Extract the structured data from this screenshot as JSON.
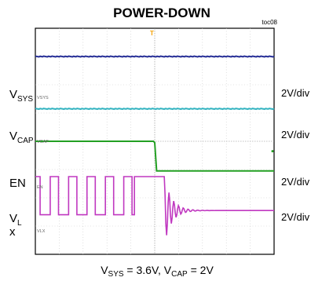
{
  "chart_data": {
    "type": "line",
    "title": "POWER-DOWN",
    "figure_id": "toc08",
    "caption_parts": [
      "V",
      "SYS",
      " = 3.6V, V",
      "CAP",
      " = 2V"
    ],
    "grid": true,
    "grid_divisions": {
      "x": 10,
      "y": 8
    },
    "trigger_marker": "T",
    "labels": [
      {
        "main": "V",
        "sub": "SYS",
        "small": "VSYS",
        "scale": "2V/div"
      },
      {
        "main": "V",
        "sub": "CAP",
        "small": "VCAP",
        "scale": "2V/div"
      },
      {
        "main": "EN",
        "sub": "",
        "small": "EN",
        "scale": "2V/div"
      },
      {
        "main": "V",
        "sub": "L",
        "small": "",
        "scale": "2V/div"
      },
      {
        "main": "x",
        "sub": "",
        "small": "VLX",
        "scale": ""
      }
    ],
    "series": [
      {
        "label_ref": 0,
        "color": "#2a3298",
        "level_div": 1.0,
        "shape": "flat"
      },
      {
        "label_ref": 1,
        "color": "#33b3c0",
        "level_div": 2.85,
        "shape": "flat"
      },
      {
        "label_ref": 2,
        "color": "#23a023",
        "level_div": 4.0,
        "shape": "falling-edge",
        "high_div": 4.0,
        "low_div": 5.05,
        "edge_div": 5.0,
        "fall_div": 0.08
      },
      {
        "label_ref": 3,
        "color": "#c038c0",
        "level_div": 6.45,
        "shape": "switching-then-ring",
        "high_div": 5.25,
        "low_div": 6.6,
        "pulse_start_div": 0.2,
        "period_div": 0.77,
        "duty": 0.55,
        "last_high_end_div": 4.15,
        "ring_start_div": 5.4,
        "ring_amp_div": 0.7,
        "ring_freq_cycles_per_div": 5.0,
        "ring_decay_per_div": 3.2,
        "settle_div": 5.8
      }
    ]
  }
}
